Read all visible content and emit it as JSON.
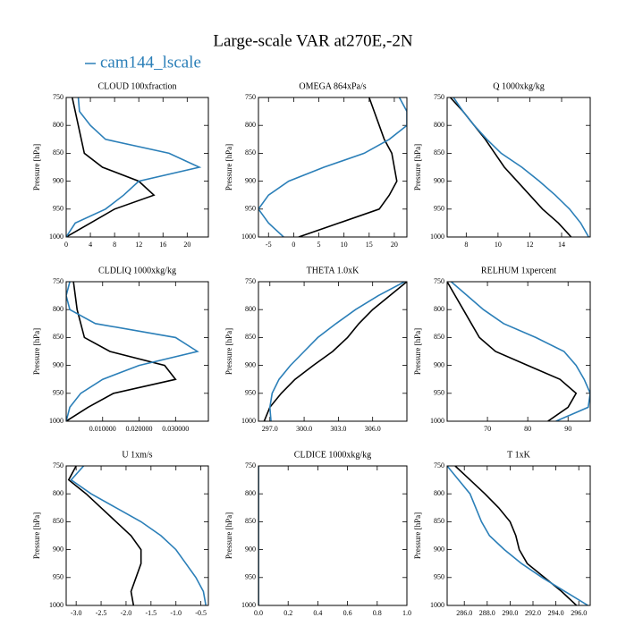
{
  "title": "Large-scale VAR at270E,-2N",
  "chart_data": [
    {
      "type": "line",
      "title": "CLOUD  100xfraction",
      "ylabel": "Pressure [hPa]",
      "y": [
        750,
        775,
        800,
        825,
        850,
        875,
        900,
        925,
        950,
        975,
        1000
      ],
      "series": [
        {
          "color": "#000000",
          "values": [
            1,
            1.5,
            2,
            2.5,
            3,
            6,
            12,
            14.5,
            8,
            4,
            0
          ]
        },
        {
          "name": "cam144_lscale",
          "color": "#2b7fb8",
          "values": [
            2,
            2.2,
            4,
            6.5,
            17,
            22,
            12,
            9.5,
            6.5,
            1.5,
            0
          ]
        }
      ],
      "xlim": [
        0,
        23.5
      ],
      "xticks": [
        0,
        4,
        8,
        12,
        16,
        20
      ],
      "ylim": [
        1000,
        750
      ],
      "yticks": [
        750,
        800,
        850,
        900,
        950,
        1000
      ]
    },
    {
      "type": "line",
      "title": "OMEGA  864xPa/s",
      "ylabel": "Pressure [hPa]",
      "y": [
        750,
        775,
        800,
        825,
        850,
        875,
        900,
        925,
        950,
        975,
        1000
      ],
      "series": [
        {
          "color": "#000000",
          "values": [
            15,
            16,
            17,
            18,
            19.5,
            20,
            20.5,
            19,
            17,
            9,
            1
          ]
        },
        {
          "name": "cam144_lscale",
          "color": "#2b7fb8",
          "values": [
            21,
            22.5,
            22.5,
            19,
            14,
            6,
            -1,
            -5,
            -7,
            -5,
            -2
          ]
        }
      ],
      "xlim": [
        -7,
        22.5
      ],
      "xticks": [
        -5,
        0,
        5,
        10,
        15,
        20
      ],
      "ylim": [
        1000,
        750
      ],
      "yticks": [
        750,
        800,
        850,
        900,
        950,
        1000
      ]
    },
    {
      "type": "line",
      "title": "Q  1000xkg/kg",
      "ylabel": "Pressure [hPa]",
      "y": [
        750,
        775,
        800,
        825,
        850,
        875,
        900,
        925,
        950,
        975,
        1000
      ],
      "series": [
        {
          "color": "#000000",
          "values": [
            7,
            7.8,
            8.5,
            9.2,
            9.8,
            10.4,
            11.2,
            12,
            12.8,
            13.8,
            14.6
          ]
        },
        {
          "name": "cam144_lscale",
          "color": "#2b7fb8",
          "values": [
            7.2,
            7.8,
            8.5,
            9.3,
            10.2,
            11.5,
            12.6,
            13.6,
            14.5,
            15.2,
            15.7
          ]
        }
      ],
      "xlim": [
        6.8,
        15.8
      ],
      "xticks": [
        8,
        10,
        12,
        14
      ],
      "ylim": [
        1000,
        750
      ],
      "yticks": [
        750,
        800,
        850,
        900,
        950,
        1000
      ]
    },
    {
      "type": "line",
      "title": "CLDLIQ  1000xkg/kg",
      "ylabel": "Pressure [hPa]",
      "y": [
        750,
        775,
        800,
        825,
        850,
        875,
        900,
        925,
        950,
        975,
        1000
      ],
      "series": [
        {
          "color": "#000000",
          "values": [
            0.002,
            0.0025,
            0.003,
            0.004,
            0.005,
            0.012,
            0.027,
            0.03,
            0.013,
            0.006,
            0
          ]
        },
        {
          "name": "cam144_lscale",
          "color": "#2b7fb8",
          "values": [
            0.001,
            0,
            0.001,
            0.008,
            0.03,
            0.036,
            0.02,
            0.01,
            0.004,
            0.001,
            0
          ]
        }
      ],
      "xlim": [
        0,
        0.039
      ],
      "xticks": [
        {
          "value": 0.01,
          "label": "0.010000"
        },
        {
          "value": 0.02,
          "label": "0.020000"
        },
        {
          "value": 0.03,
          "label": "0.030000"
        }
      ],
      "ylim": [
        1000,
        750
      ],
      "yticks": [
        750,
        800,
        850,
        900,
        950,
        1000
      ]
    },
    {
      "type": "line",
      "title": "THETA  1.0xK",
      "ylabel": "Pressure [hPa]",
      "y": [
        750,
        775,
        800,
        825,
        850,
        875,
        900,
        925,
        950,
        975,
        1000
      ],
      "series": [
        {
          "color": "#000000",
          "values": [
            309,
            307.5,
            306,
            304.8,
            303.8,
            302.5,
            300.8,
            299.2,
            298,
            297,
            296.5
          ]
        },
        {
          "name": "cam144_lscale",
          "color": "#2b7fb8",
          "values": [
            308.8,
            306.5,
            304.5,
            302.8,
            301.2,
            300,
            298.8,
            297.8,
            297.2,
            297,
            297.1
          ]
        }
      ],
      "xlim": [
        296,
        309
      ],
      "xticks": [
        {
          "value": 297,
          "label": "297.0"
        },
        {
          "value": 300,
          "label": "300.0"
        },
        {
          "value": 303,
          "label": "303.0"
        },
        {
          "value": 306,
          "label": "306.0"
        }
      ],
      "ylim": [
        1000,
        750
      ],
      "yticks": [
        750,
        800,
        850,
        900,
        950,
        1000
      ]
    },
    {
      "type": "line",
      "title": "RELHUM  1xpercent",
      "ylabel": "Pressure [hPa]",
      "y": [
        750,
        775,
        800,
        825,
        850,
        875,
        900,
        925,
        950,
        975,
        1000
      ],
      "series": [
        {
          "color": "#000000",
          "values": [
            60,
            62,
            64,
            66,
            68,
            72,
            80,
            88,
            92,
            90,
            85
          ]
        },
        {
          "name": "cam144_lscale",
          "color": "#2b7fb8",
          "values": [
            61,
            65,
            69,
            74,
            82,
            89,
            92,
            94,
            95.5,
            95,
            87
          ]
        }
      ],
      "xlim": [
        60,
        95.5
      ],
      "xticks": [
        70,
        80,
        90
      ],
      "ylim": [
        1000,
        750
      ],
      "yticks": [
        750,
        800,
        850,
        900,
        950,
        1000
      ]
    },
    {
      "type": "line",
      "title": "U  1xm/s",
      "ylabel": "Pressure [hPa]",
      "y": [
        750,
        775,
        800,
        825,
        850,
        875,
        900,
        925,
        950,
        975,
        1000
      ],
      "series": [
        {
          "color": "#000000",
          "values": [
            -3.0,
            -3.15,
            -2.8,
            -2.5,
            -2.2,
            -1.9,
            -1.7,
            -1.7,
            -1.8,
            -1.9,
            -1.85
          ]
        },
        {
          "name": "cam144_lscale",
          "color": "#2b7fb8",
          "values": [
            -2.85,
            -3.1,
            -2.7,
            -2.2,
            -1.7,
            -1.3,
            -1.0,
            -0.8,
            -0.6,
            -0.45,
            -0.4
          ]
        }
      ],
      "xlim": [
        -3.2,
        -0.35
      ],
      "xticks": [
        {
          "value": -3,
          "label": "-3.0"
        },
        -2.5,
        {
          "value": -2,
          "label": "-2.0"
        },
        -1.5,
        {
          "value": -1,
          "label": "-1.0"
        },
        -0.5
      ],
      "ylim": [
        1000,
        750
      ],
      "yticks": [
        750,
        800,
        850,
        900,
        950,
        1000
      ]
    },
    {
      "type": "line",
      "title": "CLDICE  1000xkg/kg",
      "ylabel": "Pressure [hPa]",
      "y": [
        750,
        775,
        800,
        825,
        850,
        875,
        900,
        925,
        950,
        975,
        1000
      ],
      "series": [
        {
          "color": "#000000",
          "values": [
            0,
            0,
            0,
            0,
            0,
            0,
            0,
            0,
            0,
            0,
            0
          ]
        },
        {
          "name": "cam144_lscale",
          "color": "#2b7fb8",
          "values": [
            0,
            0,
            0,
            0,
            0,
            0,
            0,
            0,
            0,
            0,
            0
          ]
        }
      ],
      "xlim": [
        0,
        1
      ],
      "xticks": [
        {
          "value": 0,
          "label": "0.0"
        },
        0.2,
        0.4,
        0.6,
        0.8,
        {
          "value": 1,
          "label": "1.0"
        }
      ],
      "ylim": [
        1000,
        750
      ],
      "yticks": [
        750,
        800,
        850,
        900,
        950,
        1000
      ]
    },
    {
      "type": "line",
      "title": "T  1xK",
      "ylabel": "Pressure [hPa]",
      "y": [
        750,
        775,
        800,
        825,
        850,
        875,
        900,
        925,
        950,
        975,
        1000
      ],
      "series": [
        {
          "color": "#000000",
          "values": [
            285.2,
            286.5,
            287.8,
            289,
            290,
            290.5,
            290.8,
            291.5,
            293,
            294.5,
            295.8
          ]
        },
        {
          "name": "cam144_lscale",
          "color": "#2b7fb8",
          "values": [
            284.5,
            285.5,
            286.5,
            287,
            287.5,
            288.2,
            289.5,
            291,
            292.8,
            294.8,
            296.8
          ]
        }
      ],
      "xlim": [
        284.5,
        297
      ],
      "xticks": [
        {
          "value": 286,
          "label": "286.0"
        },
        {
          "value": 288,
          "label": "288.0"
        },
        {
          "value": 290,
          "label": "290.0"
        },
        {
          "value": 292,
          "label": "292.0"
        },
        {
          "value": 294,
          "label": "294.0"
        },
        {
          "value": 296,
          "label": "296.0"
        }
      ],
      "ylim": [
        1000,
        750
      ],
      "yticks": [
        750,
        800,
        850,
        900,
        950,
        1000
      ]
    }
  ]
}
